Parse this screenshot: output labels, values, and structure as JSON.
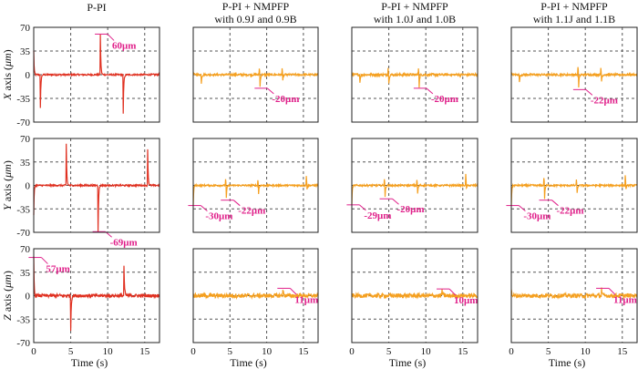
{
  "colors": {
    "pi_line": "#e03020",
    "nmpfp_line": "#f5a020",
    "annotation": "#e0208a",
    "grid": "#555555",
    "frame": "#222222"
  },
  "chart_data": {
    "type": "line",
    "layout": "grid 3 rows x 4 columns",
    "xlabel": "Time (s)",
    "xlim": [
      0,
      17
    ],
    "xticks": [
      "0",
      "5",
      "10",
      "15"
    ],
    "xtick_values": [
      0,
      5,
      10,
      15
    ],
    "ylim": [
      -70,
      70
    ],
    "yticks": [
      "70",
      "35",
      "0",
      "-35",
      "-70"
    ],
    "ytick_values": [
      70,
      35,
      0,
      -35,
      -70
    ],
    "grid": true,
    "columns": [
      {
        "title_lines": [
          "P-PI"
        ],
        "color_key": "pi_line"
      },
      {
        "title_lines": [
          "P-PI + NMPFP",
          "with 0.9J and 0.9B"
        ],
        "color_key": "nmpfp_line"
      },
      {
        "title_lines": [
          "P-PI + NMPFP",
          "with 1.0J and 1.0B"
        ],
        "color_key": "nmpfp_line"
      },
      {
        "title_lines": [
          "P-PI + NMPFP",
          "with 1.1J and 1.1B"
        ],
        "color_key": "nmpfp_line"
      }
    ],
    "rows": [
      {
        "ylabel": "X axis (μm)",
        "ylabel_axis_letter": "X",
        "ylabel_rest": " axis (",
        "ylabel_unit": "μm",
        "ylabel_close": ")"
      },
      {
        "ylabel": "Y axis (μm)",
        "ylabel_axis_letter": "Y",
        "ylabel_rest": " axis (",
        "ylabel_unit": "μm",
        "ylabel_close": ")"
      },
      {
        "ylabel": "Z axis (μm)",
        "ylabel_axis_letter": "Z",
        "ylabel_rest": " axis (",
        "ylabel_unit": "μm",
        "ylabel_close": ")"
      }
    ],
    "panels": [
      {
        "row": 0,
        "col": 0,
        "name": "x-axis-p-pi",
        "start": 35,
        "noise": 1.2,
        "spikes": [
          {
            "t": 0.9,
            "v": -50
          },
          {
            "t": 9.0,
            "v": 60
          },
          {
            "t": 12.1,
            "v": -58
          }
        ],
        "annotations": [
          {
            "text": "60μm",
            "t": 9.0,
            "v": 60
          }
        ]
      },
      {
        "row": 0,
        "col": 1,
        "name": "x-axis-nmpfp-0.9",
        "start": 2,
        "noise": 1.5,
        "spikes": [
          {
            "t": 1.1,
            "v": -12
          },
          {
            "t": 9.0,
            "v": 10
          },
          {
            "t": 9.1,
            "v": -20
          },
          {
            "t": 12.1,
            "v": 10
          },
          {
            "t": 12.2,
            "v": -12
          }
        ],
        "annotations": [
          {
            "text": "-20μm",
            "t": 9.1,
            "v": -20
          }
        ]
      },
      {
        "row": 0,
        "col": 2,
        "name": "x-axis-nmpfp-1.0",
        "start": 3,
        "noise": 1.8,
        "spikes": [
          {
            "t": 1.1,
            "v": -12
          },
          {
            "t": 4.9,
            "v": 10
          },
          {
            "t": 5.0,
            "v": -16
          },
          {
            "t": 9.0,
            "v": 10
          },
          {
            "t": 9.1,
            "v": -20
          }
        ],
        "annotations": [
          {
            "text": "-20μm",
            "t": 9.1,
            "v": -20
          }
        ]
      },
      {
        "row": 0,
        "col": 3,
        "name": "x-axis-nmpfp-1.1",
        "start": 3,
        "noise": 1.5,
        "spikes": [
          {
            "t": 1.1,
            "v": -12
          },
          {
            "t": 9.0,
            "v": 12
          },
          {
            "t": 9.1,
            "v": -22
          },
          {
            "t": 12.1,
            "v": 10
          },
          {
            "t": 12.2,
            "v": -12
          }
        ],
        "annotations": [
          {
            "text": "-22μm",
            "t": 9.1,
            "v": -22
          }
        ]
      },
      {
        "row": 1,
        "col": 0,
        "name": "y-axis-p-pi",
        "start": -45,
        "noise": 1.2,
        "spikes": [
          {
            "t": 4.4,
            "v": 62
          },
          {
            "t": 8.7,
            "v": -69
          },
          {
            "t": 15.4,
            "v": 55
          }
        ],
        "annotations": [
          {
            "text": "-69μm",
            "t": 8.7,
            "v": -69
          }
        ]
      },
      {
        "row": 1,
        "col": 1,
        "name": "y-axis-nmpfp-0.9",
        "start": -30,
        "noise": 1.3,
        "spikes": [
          {
            "t": 4.4,
            "v": 10
          },
          {
            "t": 4.5,
            "v": -22
          },
          {
            "t": 8.8,
            "v": 8
          },
          {
            "t": 8.9,
            "v": -14
          },
          {
            "t": 15.4,
            "v": 14
          },
          {
            "t": 15.5,
            "v": -8
          }
        ],
        "annotations": [
          {
            "text": "-30μm",
            "t": 0.05,
            "v": -30
          },
          {
            "text": "-22μm",
            "t": 4.5,
            "v": -22
          }
        ]
      },
      {
        "row": 1,
        "col": 2,
        "name": "y-axis-nmpfp-1.0",
        "start": -29,
        "noise": 1.3,
        "spikes": [
          {
            "t": 4.4,
            "v": 10
          },
          {
            "t": 4.5,
            "v": -20
          },
          {
            "t": 8.8,
            "v": 8
          },
          {
            "t": 8.9,
            "v": -14
          },
          {
            "t": 15.4,
            "v": 16
          },
          {
            "t": 15.5,
            "v": -8
          }
        ],
        "annotations": [
          {
            "text": "-29μm",
            "t": 0.05,
            "v": -29
          },
          {
            "text": "-20μm",
            "t": 4.5,
            "v": -20
          }
        ]
      },
      {
        "row": 1,
        "col": 3,
        "name": "y-axis-nmpfp-1.1",
        "start": -30,
        "noise": 1.3,
        "spikes": [
          {
            "t": 4.4,
            "v": 12
          },
          {
            "t": 4.5,
            "v": -22
          },
          {
            "t": 8.8,
            "v": 8
          },
          {
            "t": 8.9,
            "v": -14
          },
          {
            "t": 15.4,
            "v": 14
          },
          {
            "t": 15.5,
            "v": -8
          }
        ],
        "annotations": [
          {
            "text": "-30μm",
            "t": 0.05,
            "v": -30
          },
          {
            "text": "-22μm",
            "t": 4.5,
            "v": -22
          }
        ]
      },
      {
        "row": 2,
        "col": 0,
        "name": "z-axis-p-pi",
        "start": 57,
        "noise": 2.5,
        "spikes": [
          {
            "t": 5.0,
            "v": -52
          },
          {
            "t": 12.2,
            "v": 45
          }
        ],
        "annotations": [
          {
            "text": "57μm",
            "t": 0.05,
            "v": 57
          }
        ]
      },
      {
        "row": 2,
        "col": 1,
        "name": "z-axis-nmpfp-0.9",
        "start": 2,
        "noise": 3.2,
        "spikes": [
          {
            "t": 12.2,
            "v": 11
          }
        ],
        "annotations": [
          {
            "text": "11μm",
            "t": 12.2,
            "v": 11
          }
        ]
      },
      {
        "row": 2,
        "col": 2,
        "name": "z-axis-nmpfp-1.0",
        "start": 2,
        "noise": 3.2,
        "spikes": [
          {
            "t": 12.2,
            "v": 10
          }
        ],
        "annotations": [
          {
            "text": "10μm",
            "t": 12.2,
            "v": 10
          }
        ]
      },
      {
        "row": 2,
        "col": 3,
        "name": "z-axis-nmpfp-1.1",
        "start": 10,
        "noise": 3.2,
        "spikes": [
          {
            "t": 12.2,
            "v": 11
          }
        ],
        "annotations": [
          {
            "text": "11μm",
            "t": 12.2,
            "v": 11
          }
        ]
      }
    ]
  }
}
